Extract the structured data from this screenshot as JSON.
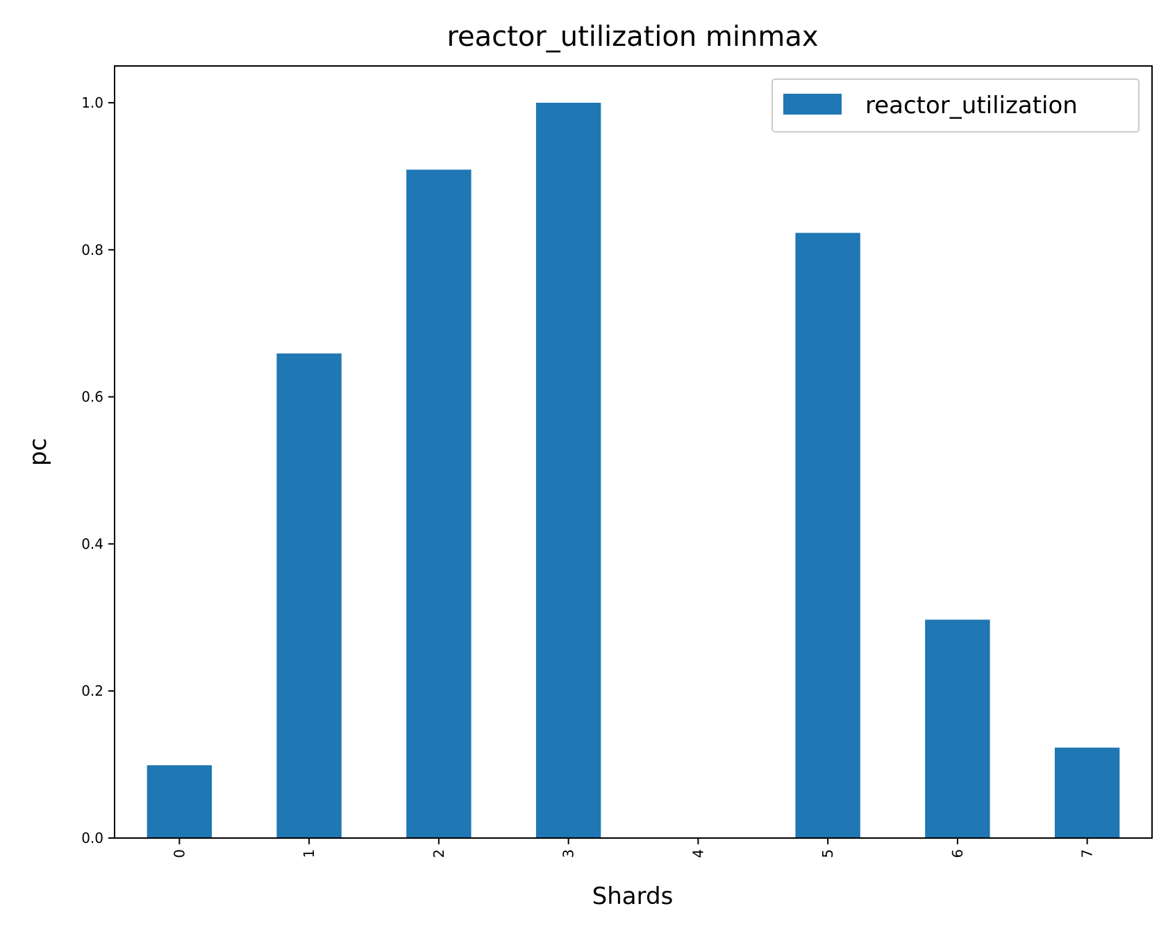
{
  "chart_data": {
    "type": "bar",
    "title": "reactor_utilization minmax",
    "xlabel": "Shards",
    "ylabel": "pc",
    "categories": [
      "0",
      "1",
      "2",
      "3",
      "4",
      "5",
      "6",
      "7"
    ],
    "series": [
      {
        "name": "reactor_utilization",
        "color": "#1f77b4",
        "values": [
          0.099,
          0.659,
          0.909,
          1.0,
          0.0,
          0.823,
          0.297,
          0.123
        ]
      }
    ],
    "ylim": [
      0,
      1.05
    ],
    "yticks": [
      0.0,
      0.2,
      0.4,
      0.6,
      0.8,
      1.0
    ],
    "ytick_labels": [
      "0.0",
      "0.2",
      "0.4",
      "0.6",
      "0.8",
      "1.0"
    ],
    "xtick_rotation": "vertical",
    "grid": false,
    "legend_position": "top-right"
  }
}
